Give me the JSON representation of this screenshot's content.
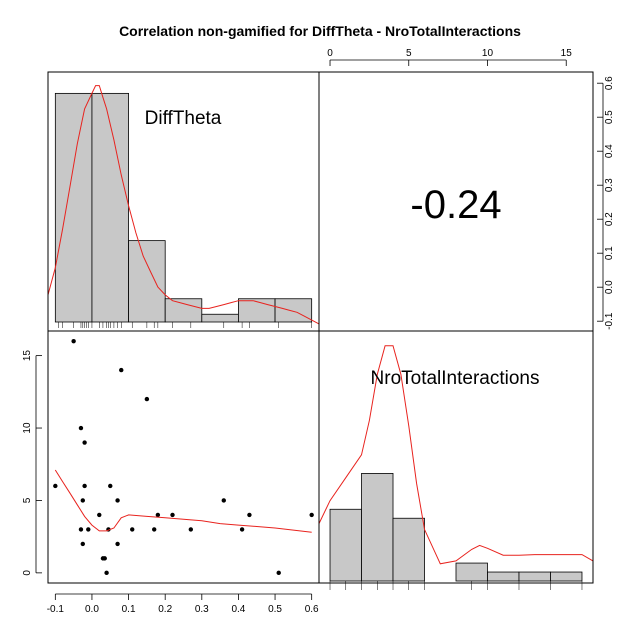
{
  "chart_data": {
    "type": "scatter-matrix",
    "title": "Correlation non-gamified for DiffTheta - NroTotalInteractions",
    "variables": [
      "DiffTheta",
      "NroTotalInteractions"
    ],
    "correlation": "-0.24",
    "axes": {
      "diff_theta": {
        "range": [
          -0.12,
          0.62
        ],
        "ticks": [
          "-0.1",
          "0.0",
          "0.1",
          "0.2",
          "0.3",
          "0.4",
          "0.5",
          "0.6"
        ]
      },
      "nro_total": {
        "range": [
          -0.7,
          16.7
        ],
        "ticks_bottom": [
          "0",
          "5",
          "10",
          "15"
        ],
        "ticks_top": [
          "0",
          "5",
          "10",
          "15"
        ]
      },
      "density_right": {
        "range": [
          -0.12,
          0.63
        ],
        "ticks": [
          "-0.1",
          "0.0",
          "0.1",
          "0.2",
          "0.3",
          "0.4",
          "0.5",
          "0.6"
        ]
      }
    },
    "histogram_diff_theta": {
      "breaks": [
        -0.1,
        0.0,
        0.1,
        0.2,
        0.3,
        0.4,
        0.5,
        0.6
      ],
      "density": [
        0.59,
        0.59,
        0.21,
        0.06,
        0.02,
        0.06,
        0.06
      ],
      "density_curve": {
        "x": [
          -0.12,
          -0.1,
          -0.08,
          -0.06,
          -0.04,
          -0.02,
          0.0,
          0.01,
          0.02,
          0.03,
          0.04,
          0.06,
          0.08,
          0.1,
          0.12,
          0.14,
          0.16,
          0.18,
          0.2,
          0.22,
          0.24,
          0.26,
          0.28,
          0.3,
          0.32,
          0.34,
          0.36,
          0.38,
          0.4,
          0.42,
          0.44,
          0.46,
          0.48,
          0.5,
          0.52,
          0.54,
          0.56,
          0.58,
          0.6,
          0.62
        ],
        "y": [
          0.07,
          0.14,
          0.24,
          0.35,
          0.46,
          0.55,
          0.59,
          0.61,
          0.61,
          0.58,
          0.55,
          0.47,
          0.38,
          0.3,
          0.23,
          0.17,
          0.13,
          0.09,
          0.07,
          0.055,
          0.05,
          0.045,
          0.04,
          0.035,
          0.035,
          0.04,
          0.045,
          0.05,
          0.055,
          0.055,
          0.055,
          0.05,
          0.045,
          0.04,
          0.035,
          0.03,
          0.025,
          0.015,
          0.005,
          -0.005
        ]
      },
      "rug": [
        -0.092,
        -0.08,
        -0.05,
        -0.03,
        -0.025,
        -0.02,
        -0.015,
        -0.01,
        0.0,
        0.02,
        0.03,
        0.04,
        0.045,
        0.05,
        0.06,
        0.07,
        0.08,
        0.11,
        0.15,
        0.17,
        0.18,
        0.22,
        0.27,
        0.36,
        0.41,
        0.43,
        0.51,
        0.6
      ]
    },
    "histogram_nro_total": {
      "breaks": [
        0,
        2,
        4,
        6,
        8,
        10,
        12,
        14,
        16
      ],
      "counts": [
        8,
        12,
        7,
        0,
        2,
        1,
        1,
        1
      ],
      "density_curve": {
        "x": [
          -0.7,
          0,
          1,
          2,
          2.5,
          3,
          3.5,
          4,
          4.5,
          5,
          5.5,
          6,
          7,
          8,
          9,
          9.5,
          10,
          11,
          12,
          13,
          14,
          15,
          16,
          16.7
        ],
        "y": [
          0.1,
          0.14,
          0.18,
          0.22,
          0.28,
          0.36,
          0.41,
          0.41,
          0.36,
          0.27,
          0.17,
          0.09,
          0.03,
          0.035,
          0.055,
          0.062,
          0.057,
          0.045,
          0.045,
          0.046,
          0.046,
          0.046,
          0.046,
          0.035
        ]
      },
      "density_max": 0.42
    },
    "scatter": {
      "x": [
        -0.1,
        -0.05,
        -0.03,
        -0.03,
        -0.025,
        -0.025,
        -0.02,
        -0.02,
        -0.01,
        0.02,
        0.03,
        0.035,
        0.04,
        0.045,
        0.05,
        0.07,
        0.07,
        0.08,
        0.11,
        0.15,
        0.17,
        0.18,
        0.22,
        0.27,
        0.36,
        0.41,
        0.43,
        0.51,
        0.6
      ],
      "y": [
        6,
        16,
        3,
        10,
        5,
        2,
        6,
        9,
        3,
        4,
        1,
        1,
        0,
        3,
        6,
        5,
        2,
        14,
        3,
        12,
        3,
        4,
        4,
        3,
        5,
        3,
        4,
        0,
        4
      ]
    },
    "smooth": {
      "x": [
        -0.1,
        -0.08,
        -0.06,
        -0.04,
        -0.02,
        0.0,
        0.02,
        0.04,
        0.06,
        0.08,
        0.1,
        0.15,
        0.2,
        0.25,
        0.3,
        0.35,
        0.4,
        0.45,
        0.5,
        0.55,
        0.6
      ],
      "y": [
        7.1,
        6.3,
        5.5,
        4.7,
        3.9,
        3.3,
        2.9,
        2.9,
        3.1,
        3.8,
        4.0,
        3.9,
        3.8,
        3.7,
        3.6,
        3.4,
        3.3,
        3.2,
        3.1,
        2.95,
        2.8
      ]
    }
  }
}
